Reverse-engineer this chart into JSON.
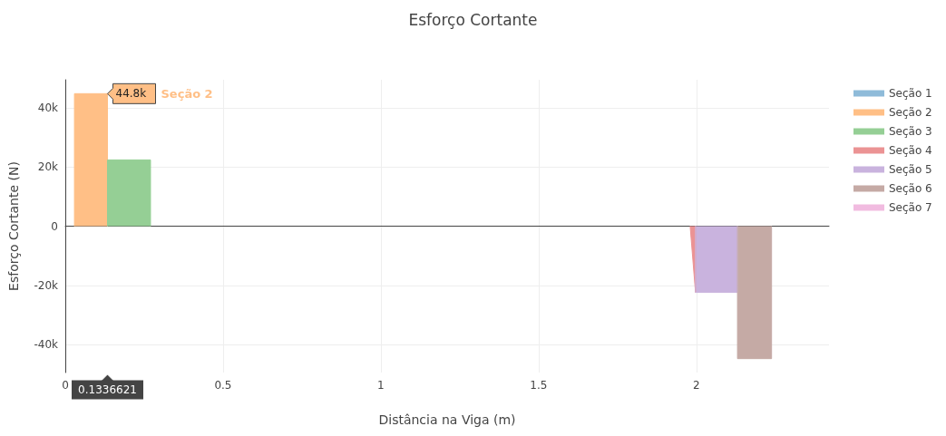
{
  "chart_data": {
    "type": "area",
    "title": "Esforço Cortante",
    "xlabel": "Distância na Viga (m)",
    "ylabel": "Esforço Cortante (N)",
    "xlim": [
      0,
      2.42
    ],
    "xticks": [
      0,
      0.5,
      1,
      1.5,
      2
    ],
    "ylim": [
      -49500,
      49500
    ],
    "yticks": [
      {
        "value": -40000,
        "label": "-40k"
      },
      {
        "value": -20000,
        "label": "-20k"
      },
      0,
      {
        "value": 20000,
        "label": "20k"
      },
      {
        "value": 40000,
        "label": "40k"
      }
    ],
    "grid": true,
    "legend": "top right",
    "annotations": [
      {
        "text": "44.8k",
        "x": 0.1336621,
        "y": 44800
      },
      "Seção 2",
      "0.1336621"
    ],
    "series": [
      {
        "name": "Seção 1",
        "color": "#8fbbd9"
      },
      {
        "name": "Seção 2",
        "color": "#ffbf86",
        "x": [
          0.029,
          0.029,
          0.1336621,
          0.1336621
        ],
        "values": [
          0,
          44800,
          44800,
          0
        ]
      },
      {
        "name": "Seção 3",
        "color": "#95cf95",
        "x": [
          0.1336621,
          0.1336621,
          0.27,
          0.27
        ],
        "values": [
          0,
          22400,
          22400,
          0
        ]
      },
      {
        "name": "Seção 4",
        "color": "#eb9394",
        "x": [
          1.98,
          1.997,
          1.997
        ],
        "values": [
          0,
          -22400,
          0
        ]
      },
      {
        "name": "Seção 5",
        "color": "#c9b3de",
        "x": [
          1.997,
          1.997,
          2.13,
          2.13
        ],
        "values": [
          0,
          -22400,
          -22400,
          0
        ]
      },
      {
        "name": "Seção 6",
        "color": "#c5aaa5",
        "x": [
          2.13,
          2.13,
          2.238,
          2.238
        ],
        "values": [
          0,
          -44800,
          -44800,
          0
        ]
      },
      {
        "name": "Seção 7",
        "color": "#f1bbe0"
      }
    ]
  }
}
